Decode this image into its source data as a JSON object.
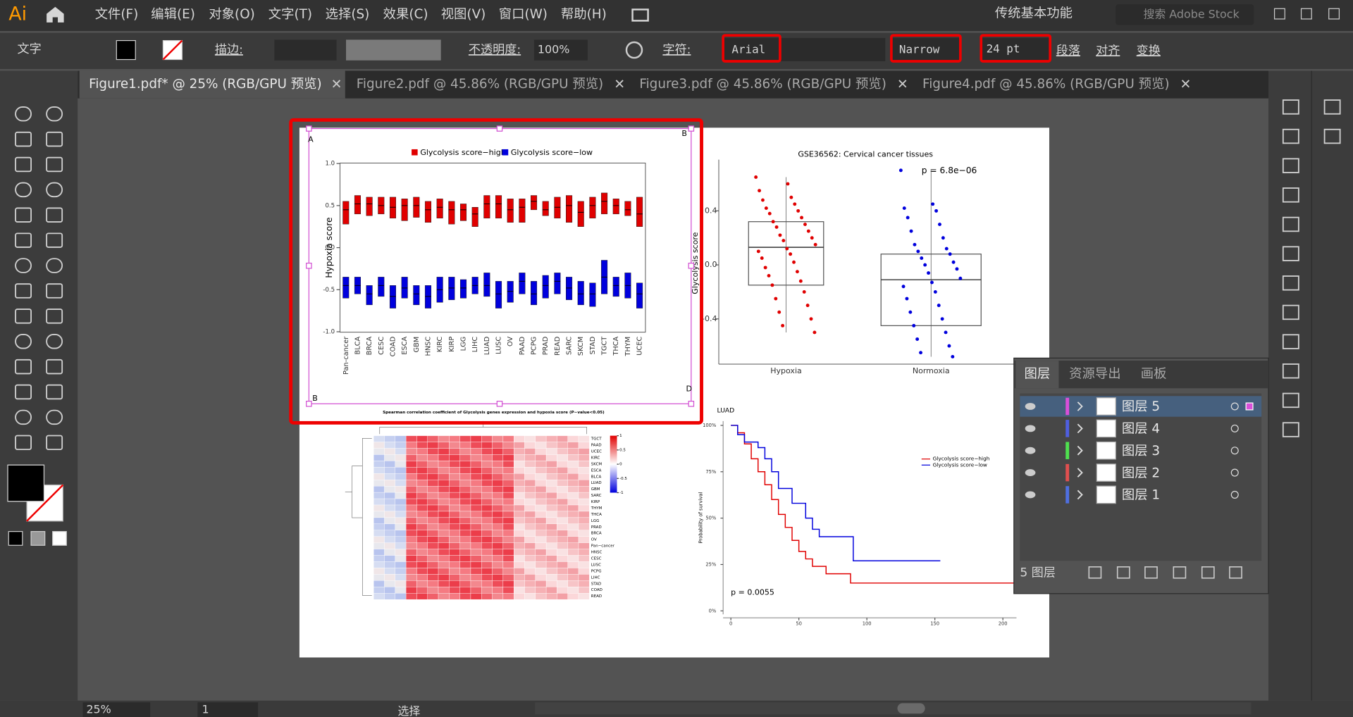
{
  "app": {
    "logo": "Ai",
    "menu": [
      "文件(F)",
      "编辑(E)",
      "对象(O)",
      "文字(T)",
      "选择(S)",
      "效果(C)",
      "视图(V)",
      "窗口(W)",
      "帮助(H)"
    ],
    "workspace": "传统基本功能",
    "search": "搜索 Adobe Stock"
  },
  "control": {
    "tool": "文字",
    "stroke": "描边:",
    "opacity_label": "不透明度:",
    "opacity": "100%",
    "char_label": "字符:",
    "font": "Arial",
    "style": "Narrow",
    "size": "24 pt",
    "links": [
      "段落",
      "对齐",
      "变换"
    ]
  },
  "tabs": [
    "Figure1.pdf* @ 25% (RGB/GPU 预览)",
    "Figure2.pdf @ 45.86% (RGB/GPU 预览)",
    "Figure3.pdf @ 45.86% (RGB/GPU 预览)",
    "Figure4.pdf @ 45.86% (RGB/GPU 预览)"
  ],
  "artboard_labels": [
    "A",
    "B",
    "B",
    "D"
  ],
  "boxplot": {
    "ylabel": "Hypoxia score",
    "ylim": [
      -1,
      1
    ],
    "yticks": [
      {
        "value": 1,
        "label": "1.0"
      },
      {
        "value": 0.5,
        "label": "0.5"
      },
      {
        "value": 0,
        "label": "0.0"
      },
      {
        "value": -0.5,
        "label": "-0.5"
      },
      {
        "value": -1,
        "label": "-1.0"
      }
    ],
    "categories": [
      "Pan-cancer",
      "BLCA",
      "BRCA",
      "CESC",
      "COAD",
      "ESCA",
      "GBM",
      "HNSC",
      "KIRC",
      "KIRP",
      "LGG",
      "LIHC",
      "LUAD",
      "LUSC",
      "OV",
      "PAAD",
      "PCPG",
      "PRAD",
      "READ",
      "SARC",
      "SKCM",
      "STAD",
      "TGCT",
      "THCA",
      "THYM",
      "UCEC"
    ],
    "series": [
      {
        "name": "Glycolysis score−high",
        "color": "#e00000",
        "q1": [
          0.28,
          0.4,
          0.38,
          0.4,
          0.35,
          0.32,
          0.36,
          0.3,
          0.35,
          0.28,
          0.32,
          0.25,
          0.35,
          0.35,
          0.3,
          0.3,
          0.45,
          0.38,
          0.35,
          0.3,
          0.25,
          0.35,
          0.4,
          0.4,
          0.38,
          0.25
        ],
        "median": [
          0.45,
          0.52,
          0.52,
          0.5,
          0.48,
          0.5,
          0.5,
          0.45,
          0.48,
          0.45,
          0.45,
          0.4,
          0.52,
          0.52,
          0.45,
          0.48,
          0.55,
          0.45,
          0.48,
          0.5,
          0.42,
          0.5,
          0.55,
          0.5,
          0.45,
          0.4
        ],
        "q3": [
          0.55,
          0.62,
          0.6,
          0.6,
          0.6,
          0.58,
          0.6,
          0.55,
          0.58,
          0.55,
          0.52,
          0.48,
          0.62,
          0.62,
          0.58,
          0.58,
          0.62,
          0.55,
          0.6,
          0.62,
          0.55,
          0.6,
          0.65,
          0.58,
          0.55,
          0.6
        ]
      },
      {
        "name": "Glycolysis score−low",
        "color": "#0000dd",
        "q1": [
          -0.6,
          -0.55,
          -0.68,
          -0.58,
          -0.72,
          -0.6,
          -0.68,
          -0.72,
          -0.65,
          -0.62,
          -0.6,
          -0.55,
          -0.58,
          -0.72,
          -0.65,
          -0.55,
          -0.68,
          -0.6,
          -0.55,
          -0.62,
          -0.68,
          -0.7,
          -0.55,
          -0.58,
          -0.6,
          -0.72
        ],
        "median": [
          -0.45,
          -0.45,
          -0.55,
          -0.45,
          -0.58,
          -0.48,
          -0.55,
          -0.58,
          -0.5,
          -0.48,
          -0.48,
          -0.45,
          -0.45,
          -0.55,
          -0.52,
          -0.4,
          -0.55,
          -0.45,
          -0.4,
          -0.48,
          -0.55,
          -0.55,
          -0.35,
          -0.45,
          -0.45,
          -0.55
        ],
        "q3": [
          -0.35,
          -0.35,
          -0.45,
          -0.35,
          -0.45,
          -0.35,
          -0.45,
          -0.45,
          -0.35,
          -0.35,
          -0.38,
          -0.35,
          -0.3,
          -0.4,
          -0.4,
          -0.3,
          -0.4,
          -0.33,
          -0.3,
          -0.35,
          -0.4,
          -0.42,
          -0.15,
          -0.35,
          -0.3,
          -0.42
        ]
      }
    ]
  },
  "scatter": {
    "title": "GSE36562: Cervical cancer tissues",
    "annotation": "p = 6.8e−06",
    "ylabel": "Glycolysis score",
    "ylim": [
      -0.73,
      0.78
    ],
    "yticks": [
      {
        "value": 0.4,
        "label": "0.4"
      },
      {
        "value": 0,
        "label": "0.0"
      },
      {
        "value": -0.4,
        "label": "-0.4"
      }
    ],
    "groups": [
      {
        "name": "Hypoxia",
        "color": "#e00000",
        "q1": -0.15,
        "median": 0.13,
        "q3": 0.32,
        "values": [
          0.65,
          0.6,
          0.55,
          0.5,
          0.48,
          0.45,
          0.42,
          0.4,
          0.38,
          0.35,
          0.32,
          0.3,
          0.28,
          0.25,
          0.22,
          0.2,
          0.18,
          0.15,
          0.12,
          0.1,
          0.08,
          0.05,
          0.02,
          -0.02,
          -0.05,
          -0.08,
          -0.12,
          -0.15,
          -0.2,
          -0.25,
          -0.3,
          -0.35,
          -0.4,
          -0.45,
          -0.5
        ]
      },
      {
        "name": "Normoxia",
        "color": "#0000dd",
        "q1": -0.45,
        "median": -0.11,
        "q3": 0.08,
        "values": [
          0.7,
          0.45,
          0.42,
          0.4,
          0.35,
          0.3,
          0.25,
          0.2,
          0.15,
          0.12,
          0.1,
          0.08,
          0.05,
          0.02,
          0,
          -0.03,
          -0.06,
          -0.1,
          -0.13,
          -0.16,
          -0.2,
          -0.25,
          -0.3,
          -0.35,
          -0.4,
          -0.45,
          -0.5,
          -0.55,
          -0.6,
          -0.65,
          -0.68
        ]
      }
    ]
  },
  "heatmap": {
    "title": "Spearman correlation coefficient of Glycolysis genes expression and hypoxia score (P−value<0.05)",
    "rows": [
      "TGCT",
      "PAAD",
      "UCEC",
      "KIRC",
      "SKCM",
      "ESCA",
      "BLCA",
      "LUAD",
      "GBM",
      "SARC",
      "KIRP",
      "THYM",
      "THCA",
      "LGG",
      "PRAD",
      "BRCA",
      "OV",
      "Pan−cancer",
      "HNSC",
      "CESC",
      "LUSC",
      "PCPG",
      "LIHC",
      "STAD",
      "COAD",
      "READ"
    ],
    "scale_ticks": [
      1,
      0.5,
      0,
      -0.5,
      -1
    ]
  },
  "km": {
    "title": "LUAD",
    "ylabel": "Probability of survival",
    "annotation": "p = 0.0055",
    "xlim": [
      0,
      210
    ],
    "ylim": [
      0,
      100
    ],
    "xticks": [
      0,
      50,
      100,
      150,
      200
    ],
    "yticks": [
      {
        "value": 0,
        "label": "0%"
      },
      {
        "value": 25,
        "label": "25%"
      },
      {
        "value": 50,
        "label": "50%"
      },
      {
        "value": 75,
        "label": "75%"
      },
      {
        "value": 100,
        "label": "100%"
      }
    ],
    "series": [
      {
        "name": "Glycolysis score−high",
        "color": "#e00000",
        "time": [
          0,
          5,
          10,
          15,
          20,
          25,
          30,
          35,
          40,
          45,
          50,
          55,
          60,
          70,
          88,
          208
        ],
        "survival": [
          100,
          96,
          90,
          82,
          75,
          68,
          60,
          52,
          45,
          38,
          32,
          28,
          24,
          20,
          15,
          15
        ]
      },
      {
        "name": "Glycolysis score−low",
        "color": "#0000dd",
        "time": [
          0,
          5,
          10,
          20,
          25,
          30,
          35,
          45,
          55,
          60,
          65,
          90,
          154
        ],
        "survival": [
          100,
          95,
          91,
          88,
          82,
          75,
          66,
          58,
          50,
          44,
          40,
          27,
          27
        ]
      }
    ]
  },
  "layers": {
    "tabs": [
      "图层",
      "资源导出",
      "画板"
    ],
    "rows": [
      {
        "name": "图层 5",
        "color": "#d94fd9"
      },
      {
        "name": "图层 4",
        "color": "#4f5fe0"
      },
      {
        "name": "图层 3",
        "color": "#4fe04f"
      },
      {
        "name": "图层 2",
        "color": "#e04f4f"
      },
      {
        "name": "图层 1",
        "color": "#4f6fe0"
      }
    ],
    "count": "5 图层"
  },
  "status": {
    "zoom": "25%",
    "page": "1",
    "tool": "选择"
  }
}
